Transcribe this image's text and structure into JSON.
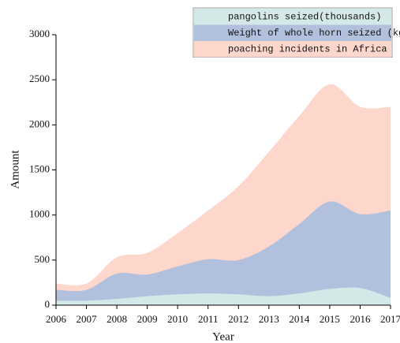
{
  "chart_data": {
    "type": "area",
    "x_label": "Year",
    "y_label": "Amount",
    "x": [
      2006,
      2007,
      2008,
      2009,
      2010,
      2011,
      2012,
      2013,
      2014,
      2015,
      2016,
      2017
    ],
    "xlim": [
      2006,
      2017
    ],
    "xticks": [
      2006,
      2007,
      2008,
      2009,
      2010,
      2011,
      2012,
      2013,
      2014,
      2015,
      2016,
      2017
    ],
    "ylim": [
      0,
      3000
    ],
    "yticks": [
      0,
      500,
      1000,
      1500,
      2000,
      2500,
      3000
    ],
    "legend": "top-right",
    "series": [
      {
        "name": "pangolins seized(thousands)",
        "color": "#d3e8e7",
        "values": [
          50,
          50,
          70,
          100,
          120,
          130,
          120,
          100,
          130,
          180,
          190,
          80
        ]
      },
      {
        "name": "Weight of whole horn seized (kg)",
        "color": "#b1c0dc",
        "values": [
          170,
          170,
          350,
          340,
          430,
          510,
          500,
          650,
          900,
          1150,
          1010,
          1050
        ]
      },
      {
        "name": "poaching incidents in Africa",
        "color": "#fdd6cc",
        "values": [
          240,
          240,
          530,
          580,
          800,
          1050,
          1320,
          1700,
          2100,
          2450,
          2200,
          2200
        ]
      }
    ]
  }
}
